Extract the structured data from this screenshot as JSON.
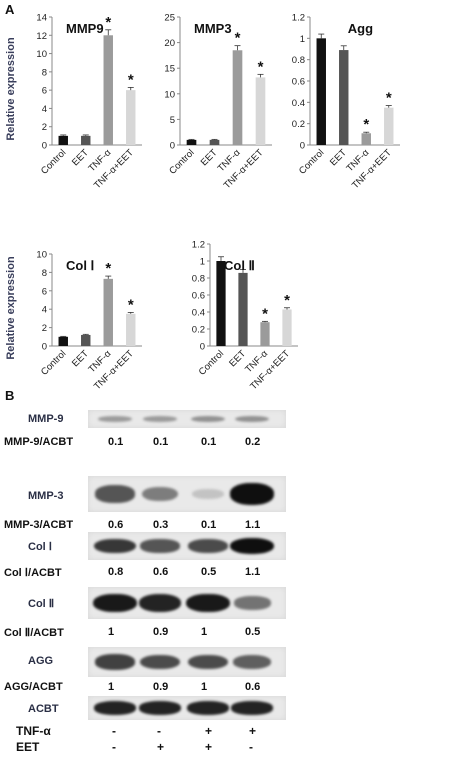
{
  "panel_labels": {
    "a": "A",
    "b": "B"
  },
  "chart_data": [
    {
      "type": "bar",
      "title": "MMP9",
      "categories": [
        "Control",
        "EET",
        "TNF-α",
        "TNF-α+EET"
      ],
      "values": [
        1.0,
        1.0,
        12.0,
        6.0
      ],
      "errors": [
        0.1,
        0.1,
        0.6,
        0.3
      ],
      "significance": [
        "",
        "",
        "*",
        "*"
      ],
      "ylabel": "Relative expression",
      "ylim": [
        0,
        14
      ],
      "yticks": [
        "0",
        "2",
        "4",
        "6",
        "8",
        "10",
        "12",
        "14"
      ],
      "colors": [
        "#111111",
        "#555555",
        "#9b9b9b",
        "#d7d7d7"
      ]
    },
    {
      "type": "bar",
      "title": "MMP3",
      "categories": [
        "Control",
        "EET",
        "TNF-α",
        "TNF-α+EET"
      ],
      "values": [
        1.0,
        1.0,
        18.5,
        13.2
      ],
      "errors": [
        0.1,
        0.1,
        0.9,
        0.6
      ],
      "significance": [
        "",
        "",
        "*",
        "*"
      ],
      "ylabel": "",
      "ylim": [
        0,
        25
      ],
      "yticks": [
        "0",
        "5",
        "10",
        "15",
        "20",
        "25"
      ],
      "colors": [
        "#111111",
        "#555555",
        "#9b9b9b",
        "#d7d7d7"
      ]
    },
    {
      "type": "bar",
      "title": "Agg",
      "categories": [
        "Control",
        "EET",
        "TNF-α",
        "TNF-α+EET"
      ],
      "values": [
        1.0,
        0.89,
        0.11,
        0.35
      ],
      "errors": [
        0.04,
        0.04,
        0.01,
        0.02
      ],
      "significance": [
        "",
        "",
        "*",
        "*"
      ],
      "ylabel": "",
      "ylim": [
        0,
        1.2
      ],
      "yticks": [
        "0",
        "0.2",
        "0.4",
        "0.6",
        "0.8",
        "1",
        "1.2"
      ],
      "colors": [
        "#111111",
        "#555555",
        "#9b9b9b",
        "#d7d7d7"
      ]
    },
    {
      "type": "bar",
      "title": "Col Ⅰ",
      "categories": [
        "Control",
        "EET",
        "TNF-α",
        "TNF-α+EET"
      ],
      "values": [
        1.0,
        1.2,
        7.3,
        3.5
      ],
      "errors": [
        0.05,
        0.07,
        0.3,
        0.15
      ],
      "significance": [
        "",
        "",
        "*",
        "*"
      ],
      "ylabel": "Relative expression",
      "ylim": [
        0,
        10
      ],
      "yticks": [
        "0",
        "2",
        "4",
        "6",
        "8",
        "10"
      ],
      "colors": [
        "#111111",
        "#555555",
        "#9b9b9b",
        "#d7d7d7"
      ]
    },
    {
      "type": "bar",
      "title": "Col Ⅱ",
      "categories": [
        "Control",
        "EET",
        "TNF-α",
        "TNF-α+EET"
      ],
      "values": [
        1.0,
        0.86,
        0.28,
        0.43
      ],
      "errors": [
        0.05,
        0.04,
        0.01,
        0.02
      ],
      "significance": [
        "",
        "",
        "*",
        "*"
      ],
      "ylabel": "",
      "ylim": [
        0,
        1.2
      ],
      "yticks": [
        "0",
        "0.2",
        "0.4",
        "0.6",
        "0.8",
        "1",
        "1.2"
      ],
      "colors": [
        "#111111",
        "#555555",
        "#9b9b9b",
        "#d7d7d7"
      ]
    }
  ],
  "western_blot": {
    "rows": [
      {
        "label": "MMP-9",
        "bands": [
          0.3,
          0.3,
          0.35,
          0.35
        ],
        "ratio_label": "MMP-9/ACBT",
        "ratios": [
          "0.1",
          "0.1",
          "0.1",
          "0.2"
        ]
      },
      {
        "label": "MMP-3",
        "bands": [
          0.65,
          0.45,
          0.1,
          1.0
        ],
        "ratio_label": "MMP-3/ACBT",
        "ratios": [
          "0.6",
          "0.3",
          "0.1",
          "1.1"
        ]
      },
      {
        "label": "Col Ⅰ",
        "bands": [
          0.8,
          0.65,
          0.7,
          1.0
        ],
        "ratio_label": "Col Ⅰ/ACBT",
        "ratios": [
          "0.8",
          "0.6",
          "0.5",
          "1.1"
        ]
      },
      {
        "label": "Col Ⅱ",
        "bands": [
          0.95,
          0.9,
          0.95,
          0.5
        ],
        "ratio_label": "Col Ⅱ/ACBT",
        "ratios": [
          "1",
          "0.9",
          "1",
          "0.5"
        ]
      },
      {
        "label": "AGG",
        "bands": [
          0.75,
          0.7,
          0.7,
          0.6
        ],
        "ratio_label": "AGG/ACBT",
        "ratios": [
          "1",
          "0.9",
          "1",
          "0.6"
        ]
      },
      {
        "label": "ACBT",
        "bands": [
          0.9,
          0.9,
          0.9,
          0.9
        ],
        "ratio_label": "",
        "ratios": []
      }
    ],
    "treatments": [
      {
        "label": "TNF-α",
        "signs": [
          "-",
          "-",
          "+",
          "+"
        ]
      },
      {
        "label": "EET",
        "signs": [
          "-",
          "+",
          "+",
          "-"
        ]
      }
    ]
  }
}
